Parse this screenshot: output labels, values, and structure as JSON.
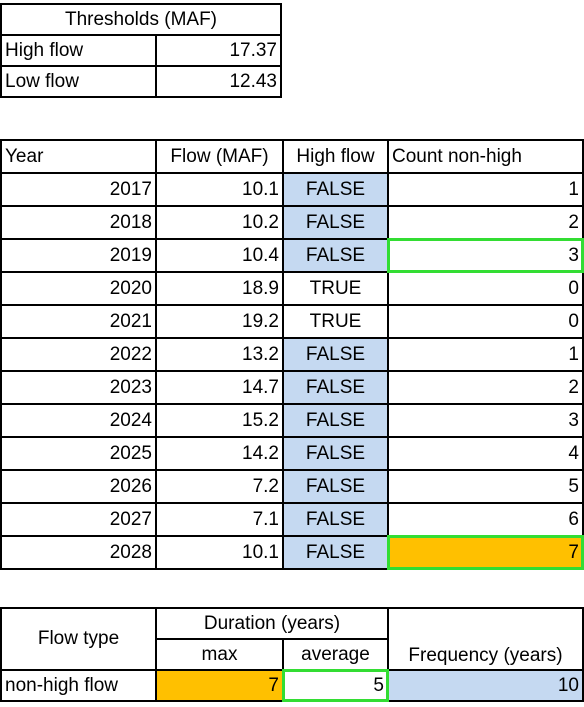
{
  "thresholds": {
    "title": "Thresholds (MAF)",
    "rows": [
      {
        "label": "High flow",
        "value": "17.37"
      },
      {
        "label": "Low flow",
        "value": "12.43"
      }
    ]
  },
  "flow_table": {
    "headers": [
      "Year",
      "Flow (MAF)",
      "High flow",
      "Count non-high"
    ],
    "rows": [
      {
        "year": "2017",
        "flow": "10.1",
        "high": "FALSE",
        "count": "1"
      },
      {
        "year": "2018",
        "flow": "10.2",
        "high": "FALSE",
        "count": "2"
      },
      {
        "year": "2019",
        "flow": "10.4",
        "high": "FALSE",
        "count": "3"
      },
      {
        "year": "2020",
        "flow": "18.9",
        "high": "TRUE",
        "count": "0"
      },
      {
        "year": "2021",
        "flow": "19.2",
        "high": "TRUE",
        "count": "0"
      },
      {
        "year": "2022",
        "flow": "13.2",
        "high": "FALSE",
        "count": "1"
      },
      {
        "year": "2023",
        "flow": "14.7",
        "high": "FALSE",
        "count": "2"
      },
      {
        "year": "2024",
        "flow": "15.2",
        "high": "FALSE",
        "count": "3"
      },
      {
        "year": "2025",
        "flow": "14.2",
        "high": "FALSE",
        "count": "4"
      },
      {
        "year": "2026",
        "flow": "7.2",
        "high": "FALSE",
        "count": "5"
      },
      {
        "year": "2027",
        "flow": "7.1",
        "high": "FALSE",
        "count": "6"
      },
      {
        "year": "2028",
        "flow": "10.1",
        "high": "FALSE",
        "count": "7"
      }
    ]
  },
  "summary": {
    "flow_type_header": "Flow type",
    "duration_header": "Duration (years)",
    "max_header": "max",
    "average_header": "average",
    "frequency_header": "Frequency (years)",
    "row": {
      "type": "non-high flow",
      "max": "7",
      "average": "5",
      "frequency": "10"
    }
  },
  "colors": {
    "false_fill": "#c5d9f1",
    "max_fill": "#ffc000",
    "highlight_border": "#33dd33"
  }
}
